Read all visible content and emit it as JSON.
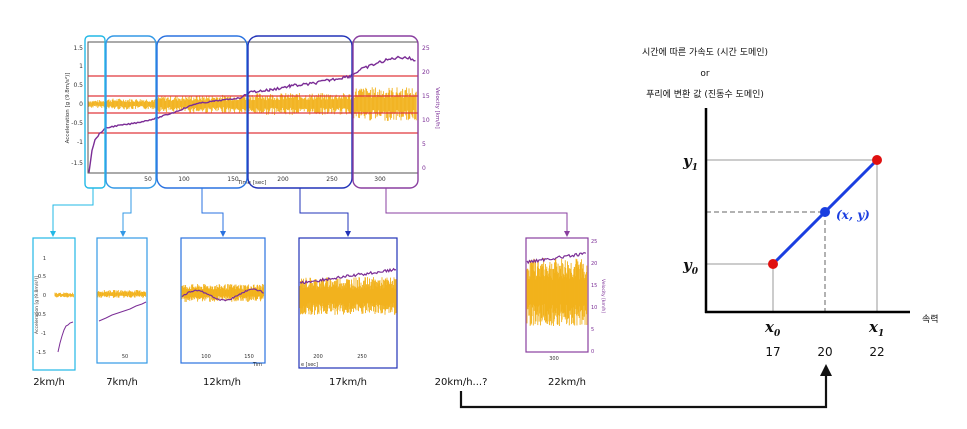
{
  "main_plot": {
    "ylabel_left": "Acceleration [g (9.8m/s²)]",
    "ylabel_right": "Velocity [km/h]",
    "xlabel": "Time [sec]",
    "x_ticks": [
      "50",
      "100",
      "150",
      "200",
      "250",
      "300"
    ],
    "y_left_ticks": [
      "1.5",
      "1",
      "0.5",
      "0",
      "-0.5",
      "-1",
      "-1.5"
    ],
    "y_right_ticks": [
      "25",
      "20",
      "15",
      "10",
      "5",
      "0"
    ]
  },
  "segments": [
    {
      "label": "2km/h",
      "color": "#22b8e6"
    },
    {
      "label": "7km/h",
      "color": "#3399e6"
    },
    {
      "label": "12km/h",
      "color": "#2a72e0"
    },
    {
      "label": "17km/h",
      "color": "#2233b8"
    },
    {
      "label": "20km/h...?",
      "color": "#000000"
    },
    {
      "label": "22km/h",
      "color": "#8a3fa0"
    }
  ],
  "sub_plots": {
    "p1_ylabel": "Acceleration [g (9.8m/s²)]",
    "p1_ticks": [
      "1",
      "0.5",
      "0",
      "-0.5",
      "-1",
      "-1.5"
    ],
    "p2_xtick": "50",
    "p3_xticks": [
      "100",
      "150"
    ],
    "p3_xlabel": "Tim",
    "p4_xticks": [
      "200",
      "250"
    ],
    "p4_xlabel": "e [sec]",
    "p6_ylabel": "Velocity [km/h]",
    "p6_ticks": [
      "25",
      "20",
      "15",
      "10",
      "5",
      "0"
    ],
    "p6_xtick": "300"
  },
  "interp": {
    "title_line1": "시간에 따른 가속도 (시간 도메인)",
    "title_or": "or",
    "title_line2": "푸리에 변환 값 (진동수 도메인)",
    "y1_label": "y",
    "y1_sub": "1",
    "y0_label": "y",
    "y0_sub": "0",
    "x0_label": "x",
    "x0_sub": "0",
    "x1_label": "x",
    "x1_sub": "1",
    "point_label": "(x, y)",
    "x0_value": "17",
    "x_value": "20",
    "x1_value": "22",
    "axis_label": "속력",
    "line_color": "#1a3ee0",
    "endpoint_color": "#e01010"
  },
  "colors": {
    "signal": "#f2b21c",
    "velocity": "#7b2d96",
    "threshold": "#e0383c"
  }
}
